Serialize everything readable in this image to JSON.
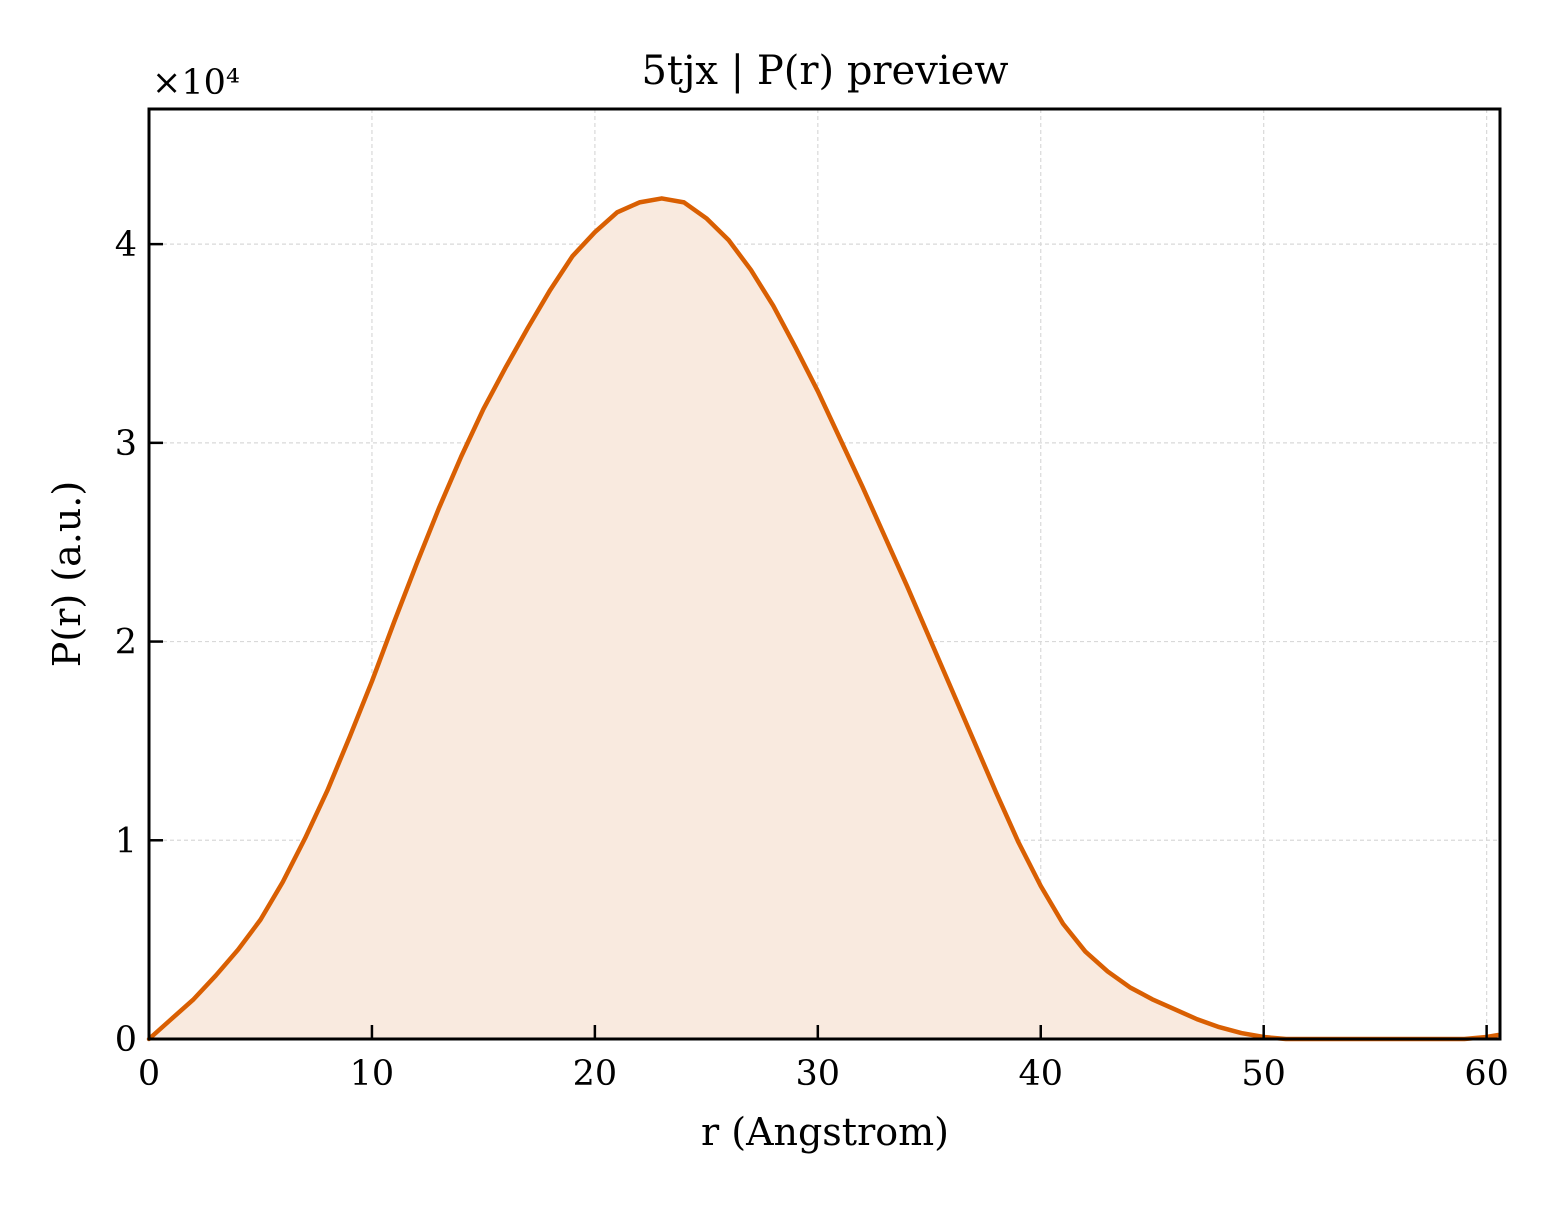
{
  "chart_data": {
    "type": "area",
    "title": "5tjx | P(r) preview",
    "xlabel": "r (Angstrom)",
    "ylabel": "P(r) (a.u.)",
    "y_scale_label": "×10⁴",
    "xlim": [
      0,
      60.6
    ],
    "ylim": [
      0,
      4.68
    ],
    "xticks": [
      "0",
      "10",
      "20",
      "30",
      "40",
      "50",
      "60"
    ],
    "yticks": [
      "0",
      "1",
      "2",
      "3",
      "4"
    ],
    "grid": true,
    "line_color": "#d95f02",
    "fill_color": "#f9eadf",
    "series": [
      {
        "x": [
          0,
          1,
          2,
          3,
          4,
          5,
          6,
          7,
          8,
          9,
          10,
          11,
          12,
          13,
          14,
          15,
          16,
          17,
          18,
          19,
          20,
          21,
          22,
          23,
          24,
          25,
          26,
          27,
          28,
          29,
          30,
          31,
          32,
          33,
          34,
          35,
          36,
          37,
          38,
          39,
          40,
          41,
          42,
          43,
          44,
          45,
          46,
          47,
          48,
          49,
          50,
          51,
          52,
          53,
          54,
          55,
          56,
          57,
          58,
          59,
          60,
          60.5
        ],
        "y": [
          0,
          0.1,
          0.2,
          0.32,
          0.45,
          0.6,
          0.79,
          1.01,
          1.25,
          1.52,
          1.8,
          2.1,
          2.39,
          2.67,
          2.93,
          3.17,
          3.38,
          3.58,
          3.77,
          3.94,
          4.06,
          4.16,
          4.21,
          4.23,
          4.21,
          4.13,
          4.02,
          3.87,
          3.69,
          3.48,
          3.26,
          3.02,
          2.78,
          2.53,
          2.28,
          2.02,
          1.76,
          1.5,
          1.24,
          0.99,
          0.77,
          0.58,
          0.44,
          0.34,
          0.26,
          0.2,
          0.15,
          0.1,
          0.06,
          0.03,
          0.01,
          0.0,
          0.0,
          0.0,
          0.0,
          0.0,
          0.0,
          0.0,
          0.0,
          0.0,
          0.01,
          0.02
        ]
      }
    ]
  }
}
